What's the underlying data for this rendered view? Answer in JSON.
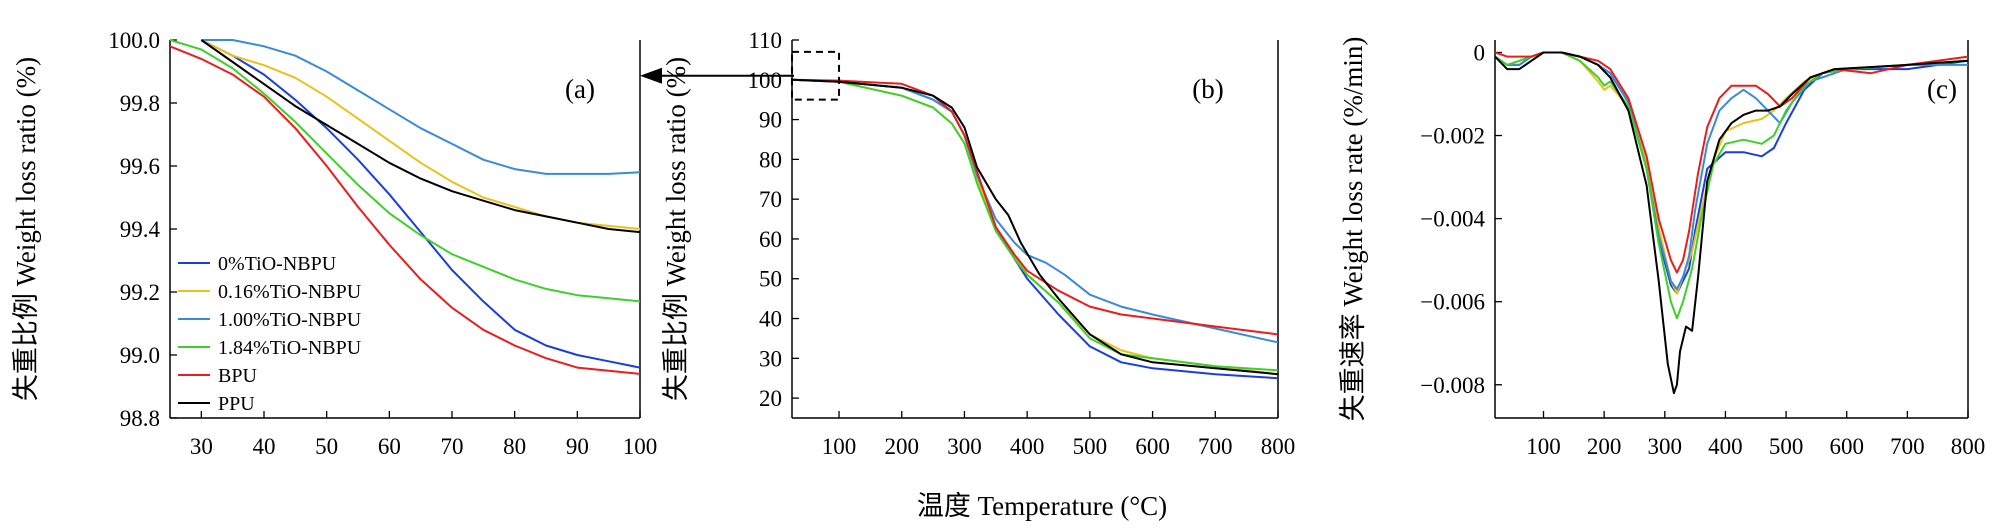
{
  "figure": {
    "shared_xlabel": "温度 Temperature (°C)"
  },
  "chart_data": [
    {
      "type": "line",
      "panel_label": "(a)",
      "xlabel": "",
      "ylabel": "失重比例 Weight loss ratio (%)",
      "xlim": [
        25,
        100
      ],
      "ylim": [
        98.8,
        100.0
      ],
      "xticks": [
        30,
        40,
        50,
        60,
        70,
        80,
        90,
        100
      ],
      "yticks": [
        "98.8",
        "99.0",
        "99.2",
        "99.4",
        "99.6",
        "99.8",
        "100.0"
      ],
      "legend_position": "lower-left",
      "series": [
        {
          "name": "0%TiO-NBPU",
          "color": "#1a3fd6",
          "x": [
            30,
            35,
            40,
            45,
            50,
            55,
            60,
            65,
            70,
            75,
            80,
            85,
            90,
            95,
            100
          ],
          "y": [
            100.0,
            99.95,
            99.89,
            99.81,
            99.72,
            99.62,
            99.51,
            99.39,
            99.27,
            99.17,
            99.08,
            99.03,
            99.0,
            98.98,
            98.96
          ]
        },
        {
          "name": "0.16%TiO-NBPU",
          "color": "#e8c21b",
          "x": [
            30,
            35,
            40,
            45,
            50,
            55,
            60,
            65,
            70,
            75,
            80,
            85,
            90,
            95,
            100
          ],
          "y": [
            100.0,
            99.95,
            99.92,
            99.88,
            99.82,
            99.75,
            99.68,
            99.61,
            99.55,
            99.5,
            99.47,
            99.44,
            99.42,
            99.41,
            99.4
          ]
        },
        {
          "name": "1.00%TiO-NBPU",
          "color": "#3a8ad8",
          "x": [
            30,
            35,
            40,
            45,
            50,
            55,
            60,
            65,
            70,
            75,
            80,
            85,
            90,
            95,
            100
          ],
          "y": [
            100.0,
            100.0,
            99.98,
            99.95,
            99.9,
            99.84,
            99.78,
            99.72,
            99.67,
            99.62,
            99.59,
            99.575,
            99.575,
            99.575,
            99.58
          ]
        },
        {
          "name": "1.84%TiO-NBPU",
          "color": "#3fcf2a",
          "x": [
            25,
            30,
            35,
            40,
            45,
            50,
            55,
            60,
            65,
            70,
            75,
            80,
            85,
            90,
            95,
            100
          ],
          "y": [
            100.0,
            99.97,
            99.91,
            99.83,
            99.74,
            99.64,
            99.54,
            99.45,
            99.38,
            99.32,
            99.28,
            99.24,
            99.21,
            99.19,
            99.18,
            99.17
          ]
        },
        {
          "name": "BPU",
          "color": "#e81e1e",
          "x": [
            25,
            30,
            35,
            40,
            45,
            50,
            55,
            60,
            65,
            70,
            75,
            80,
            85,
            90,
            95,
            100
          ],
          "y": [
            99.98,
            99.94,
            99.89,
            99.82,
            99.72,
            99.6,
            99.47,
            99.35,
            99.24,
            99.15,
            99.08,
            99.03,
            98.99,
            98.96,
            98.95,
            98.94
          ]
        },
        {
          "name": "PPU",
          "color": "#000000",
          "x": [
            30,
            35,
            40,
            45,
            50,
            55,
            60,
            65,
            70,
            75,
            80,
            85,
            90,
            95,
            100
          ],
          "y": [
            100.0,
            99.93,
            99.86,
            99.79,
            99.73,
            99.67,
            99.61,
            99.56,
            99.52,
            99.49,
            99.46,
            99.44,
            99.42,
            99.4,
            99.39
          ]
        }
      ]
    },
    {
      "type": "line",
      "panel_label": "(b)",
      "xlabel": "",
      "ylabel": "失重比例 Weight loss ratio (%)",
      "xlim": [
        25,
        800
      ],
      "ylim": [
        15,
        110
      ],
      "xticks": [
        100,
        200,
        300,
        400,
        500,
        600,
        700,
        800
      ],
      "yticks": [
        20,
        30,
        40,
        50,
        60,
        70,
        80,
        90,
        100,
        110
      ],
      "series": [
        {
          "name": "0%TiO-NBPU",
          "color": "#1a3fd6",
          "x": [
            25,
            100,
            200,
            250,
            280,
            300,
            320,
            350,
            380,
            400,
            450,
            500,
            550,
            600,
            700,
            800
          ],
          "y": [
            100,
            99.5,
            98,
            95,
            92,
            86,
            76,
            63,
            55,
            50,
            41,
            33,
            29,
            27.5,
            26,
            25
          ]
        },
        {
          "name": "0.16%TiO-NBPU",
          "color": "#e8c21b",
          "x": [
            25,
            100,
            200,
            250,
            280,
            300,
            320,
            350,
            380,
            400,
            450,
            500,
            550,
            600,
            700,
            800
          ],
          "y": [
            100,
            99.5,
            96,
            93,
            89,
            84,
            75,
            63,
            56,
            51,
            44,
            36,
            32,
            30,
            28,
            26
          ]
        },
        {
          "name": "1.00%TiO-NBPU",
          "color": "#3a8ad8",
          "x": [
            25,
            100,
            200,
            250,
            280,
            300,
            320,
            350,
            380,
            400,
            430,
            460,
            500,
            550,
            600,
            700,
            800
          ],
          "y": [
            100,
            99.5,
            98,
            95,
            92,
            86,
            76,
            65,
            59,
            56,
            54,
            51,
            46,
            43,
            41,
            37.5,
            34
          ]
        },
        {
          "name": "1.84%TiO-NBPU",
          "color": "#3fcf2a",
          "x": [
            25,
            100,
            200,
            250,
            280,
            300,
            320,
            350,
            380,
            400,
            450,
            500,
            550,
            600,
            700,
            800
          ],
          "y": [
            100,
            99.5,
            96,
            93,
            89,
            84,
            74,
            62,
            55,
            51,
            44,
            35,
            31,
            30,
            28,
            27
          ]
        },
        {
          "name": "BPU",
          "color": "#e81e1e",
          "x": [
            25,
            100,
            200,
            250,
            280,
            300,
            320,
            350,
            380,
            400,
            450,
            500,
            550,
            600,
            700,
            800
          ],
          "y": [
            100,
            99.8,
            99,
            96,
            92,
            86,
            77,
            63,
            56,
            52,
            47,
            43,
            41,
            40,
            38,
            36
          ]
        },
        {
          "name": "PPU",
          "color": "#000000",
          "x": [
            25,
            100,
            200,
            250,
            280,
            300,
            320,
            350,
            370,
            390,
            420,
            450,
            500,
            550,
            600,
            700,
            800
          ],
          "y": [
            100,
            99.5,
            98,
            96,
            93,
            88,
            78,
            70,
            66,
            59,
            51,
            45,
            36,
            31,
            29,
            27.5,
            26
          ]
        }
      ]
    },
    {
      "type": "line",
      "panel_label": "(c)",
      "xlabel": "",
      "ylabel": "失重速率 Weight loss rate (%/min)",
      "xlim": [
        20,
        800
      ],
      "ylim": [
        -0.0088,
        0.0003
      ],
      "xticks": [
        100,
        200,
        300,
        400,
        500,
        600,
        700,
        800
      ],
      "yticks": [
        "−0.008",
        "−0.006",
        "−0.004",
        "−0.002",
        "0"
      ],
      "series": [
        {
          "name": "0%TiO-NBPU",
          "color": "#1a3fd6",
          "x": [
            20,
            40,
            60,
            80,
            100,
            130,
            160,
            190,
            210,
            240,
            270,
            290,
            310,
            320,
            330,
            340,
            350,
            370,
            400,
            430,
            460,
            480,
            500,
            530,
            560,
            600,
            700,
            800
          ],
          "y": [
            -0.0001,
            -0.0003,
            -0.0003,
            -0.0001,
            0.0,
            0.0,
            -0.0001,
            -0.0003,
            -0.0005,
            -0.0012,
            -0.0028,
            -0.0045,
            -0.0056,
            -0.0058,
            -0.0055,
            -0.0052,
            -0.0043,
            -0.0028,
            -0.0024,
            -0.0024,
            -0.0025,
            -0.0023,
            -0.0017,
            -0.0009,
            -0.0005,
            -0.0004,
            -0.0004,
            -0.0002
          ]
        },
        {
          "name": "0.16%TiO-NBPU",
          "color": "#e8c21b",
          "x": [
            20,
            40,
            60,
            80,
            100,
            130,
            160,
            190,
            200,
            210,
            240,
            270,
            290,
            310,
            320,
            330,
            345,
            360,
            380,
            400,
            430,
            460,
            480,
            500,
            530,
            560,
            600,
            700,
            800
          ],
          "y": [
            -0.0001,
            -0.0003,
            -0.0002,
            -0.0001,
            0.0,
            0.0,
            -0.0002,
            -0.0007,
            -0.0009,
            -0.0008,
            -0.0013,
            -0.0026,
            -0.0042,
            -0.0055,
            -0.0058,
            -0.0054,
            -0.0048,
            -0.0038,
            -0.0026,
            -0.0019,
            -0.0017,
            -0.0016,
            -0.0014,
            -0.0011,
            -0.0007,
            -0.0005,
            -0.0004,
            -0.0003,
            -0.0002
          ]
        },
        {
          "name": "1.00%TiO-NBPU",
          "color": "#3a8ad8",
          "x": [
            20,
            40,
            60,
            80,
            100,
            130,
            160,
            190,
            210,
            240,
            270,
            290,
            310,
            320,
            330,
            340,
            350,
            370,
            390,
            410,
            430,
            450,
            470,
            490,
            510,
            540,
            600,
            700,
            800
          ],
          "y": [
            -0.0001,
            -0.0003,
            -0.0003,
            -0.0001,
            0.0,
            0.0,
            -0.0001,
            -0.0003,
            -0.0005,
            -0.0012,
            -0.0028,
            -0.0044,
            -0.0055,
            -0.0057,
            -0.0054,
            -0.0049,
            -0.0038,
            -0.0022,
            -0.0014,
            -0.0011,
            -0.0009,
            -0.0011,
            -0.0014,
            -0.0017,
            -0.0012,
            -0.0007,
            -0.0004,
            -0.0003,
            -0.0003
          ]
        },
        {
          "name": "1.84%TiO-NBPU",
          "color": "#3fcf2a",
          "x": [
            20,
            40,
            60,
            80,
            100,
            130,
            160,
            190,
            200,
            210,
            240,
            270,
            290,
            310,
            320,
            330,
            345,
            360,
            380,
            400,
            430,
            460,
            480,
            500,
            530,
            560,
            600,
            700,
            800
          ],
          "y": [
            -0.0001,
            -0.0003,
            -0.0002,
            -0.0001,
            0.0,
            0.0,
            -0.0002,
            -0.0006,
            -0.0008,
            -0.0007,
            -0.0013,
            -0.0028,
            -0.0046,
            -0.006,
            -0.0064,
            -0.006,
            -0.0052,
            -0.004,
            -0.0027,
            -0.0022,
            -0.0021,
            -0.0022,
            -0.002,
            -0.0014,
            -0.0008,
            -0.0005,
            -0.0004,
            -0.0003,
            -0.0002
          ]
        },
        {
          "name": "BPU",
          "color": "#e81e1e",
          "x": [
            20,
            40,
            60,
            80,
            100,
            130,
            160,
            190,
            210,
            240,
            270,
            290,
            310,
            320,
            330,
            340,
            355,
            370,
            390,
            410,
            430,
            450,
            470,
            490,
            510,
            540,
            580,
            640,
            700,
            800
          ],
          "y": [
            0.0,
            -0.0001,
            -0.0001,
            -0.0001,
            0.0,
            0.0,
            -0.0001,
            -0.0002,
            -0.0004,
            -0.0011,
            -0.0025,
            -0.004,
            -0.005,
            -0.0053,
            -0.005,
            -0.0043,
            -0.0029,
            -0.0018,
            -0.0011,
            -0.0008,
            -0.0008,
            -0.0008,
            -0.001,
            -0.0013,
            -0.0011,
            -0.0006,
            -0.0004,
            -0.0005,
            -0.0003,
            -0.0001
          ]
        },
        {
          "name": "PPU",
          "color": "#000000",
          "x": [
            20,
            40,
            60,
            80,
            100,
            130,
            160,
            190,
            210,
            240,
            270,
            290,
            305,
            315,
            320,
            325,
            335,
            345,
            355,
            370,
            390,
            410,
            430,
            450,
            470,
            490,
            510,
            540,
            580,
            700,
            800
          ],
          "y": [
            -0.0001,
            -0.0004,
            -0.0004,
            -0.0002,
            0.0,
            0.0,
            -0.0001,
            -0.0003,
            -0.0006,
            -0.0014,
            -0.0032,
            -0.0055,
            -0.0075,
            -0.0082,
            -0.008,
            -0.0072,
            -0.0066,
            -0.0067,
            -0.0054,
            -0.0031,
            -0.0021,
            -0.0017,
            -0.0015,
            -0.0014,
            -0.0014,
            -0.0013,
            -0.001,
            -0.0006,
            -0.0004,
            -0.0003,
            -0.0002
          ]
        }
      ]
    }
  ]
}
